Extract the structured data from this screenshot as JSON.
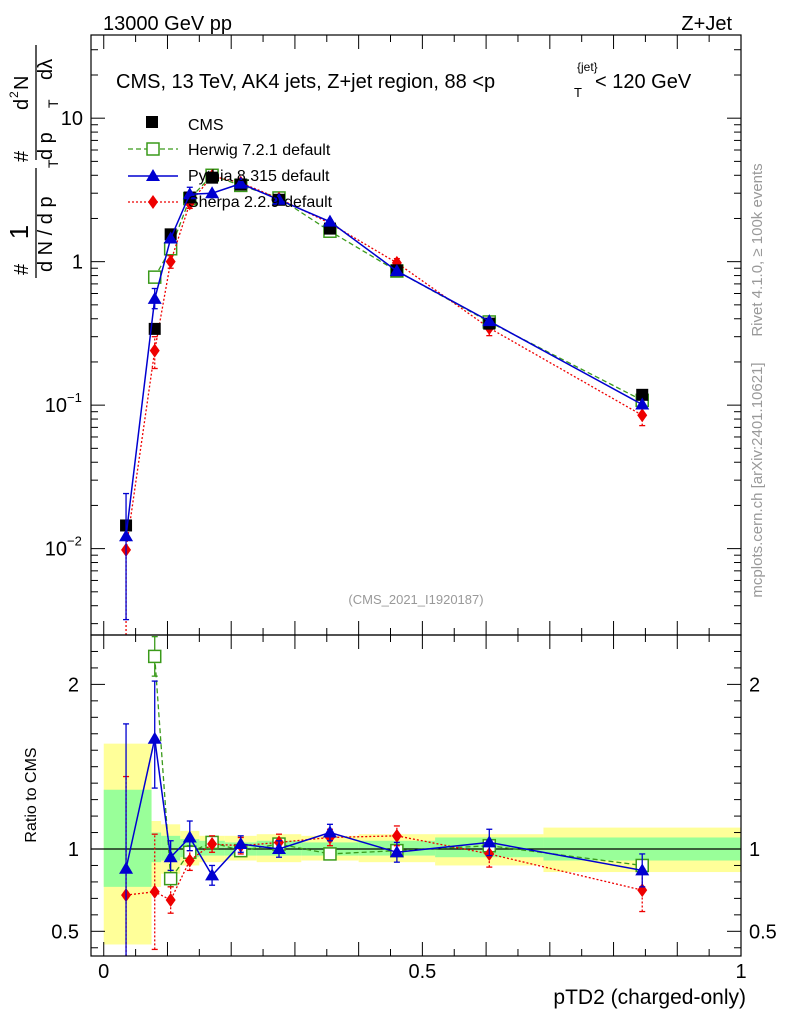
{
  "header": {
    "left": "13000 GeV pp",
    "right": "Z+Jet"
  },
  "side_labels": {
    "rivet": "Rivet 4.1.0, ≥ 100k events",
    "mcplots": "mcplots.cern.ch [arXiv:2401.10621]"
  },
  "colors": {
    "cms": "#000000",
    "herwig": "#3a9a1a",
    "pythia": "#0000d0",
    "sherpa": "#ee0000",
    "band_yellow": "#ffff99",
    "band_green": "#99ff99"
  },
  "chart_data": [
    {
      "type": "scatter",
      "title": "CMS, 13 TeV, AK4 jets, Z+jet region, 88 <p",
      "title_sup": "{jet}",
      "title_sub": "T",
      "title_tail": "< 120 GeV",
      "analysis_tag": "(CMS_2021_I1920187)",
      "ylabel": {
        "one": "1",
        "den": "d N / d p",
        "den_sub": "T",
        "hash": "#",
        "num": "d",
        "num_sup": "2",
        "num_n": "N",
        "frac_den": "d p",
        "frac_den_sub": "T",
        "frac_tail": "dλ"
      },
      "yscale": "log",
      "ylim": [
        0.0025,
        38
      ],
      "xlim": [
        -0.02,
        1.0
      ],
      "yticks": [
        {
          "value": 0.01,
          "base": "10",
          "exp": "−2"
        },
        {
          "value": 0.1,
          "base": "10",
          "exp": "−1"
        },
        {
          "value": 1,
          "label": "1"
        },
        {
          "value": 10,
          "label": "10"
        }
      ],
      "legend": [
        {
          "name": "CMS",
          "key": "cms"
        },
        {
          "name": "Herwig 7.2.1 default",
          "key": "herwig"
        },
        {
          "name": "Pythia 8.315 default",
          "key": "pythia"
        },
        {
          "name": "Sherpa 2.2.9 default",
          "key": "sherpa"
        }
      ],
      "series": [
        {
          "name": "CMS",
          "key": "cms",
          "x": [
            0.035,
            0.08,
            0.105,
            0.135,
            0.17,
            0.215,
            0.275,
            0.355,
            0.46,
            0.605,
            0.845
          ],
          "y": [
            0.0145,
            0.34,
            1.55,
            2.8,
            3.85,
            3.45,
            2.7,
            1.7,
            0.87,
            0.37,
            0.118
          ]
        },
        {
          "name": "Herwig 7.2.1 default",
          "key": "herwig",
          "x": [
            0.035,
            0.08,
            0.105,
            0.135,
            0.17,
            0.215,
            0.275,
            0.355,
            0.46,
            0.605,
            0.845
          ],
          "y": [
            null,
            0.78,
            1.23,
            2.75,
            4.0,
            3.4,
            2.78,
            1.63,
            0.86,
            0.38,
            0.108
          ]
        },
        {
          "name": "Pythia 8.315 default",
          "key": "pythia",
          "x": [
            0.035,
            0.08,
            0.105,
            0.135,
            0.17,
            0.215,
            0.275,
            0.355,
            0.46,
            0.605,
            0.845
          ],
          "y": [
            0.0122,
            0.55,
            1.45,
            2.95,
            3.0,
            3.5,
            2.7,
            1.9,
            0.86,
            0.385,
            0.101
          ],
          "yerr_lo": [
            0.009,
            0.08,
            0.0,
            0.0,
            0.0,
            0.0,
            0.0,
            0.0,
            0.0,
            0.0,
            0.0
          ],
          "yerr_hi": [
            0.012,
            0.1,
            0.0,
            0.35,
            0.0,
            0.0,
            0.0,
            0.0,
            0.0,
            0.0,
            0.0
          ]
        },
        {
          "name": "Sherpa 2.2.9 default",
          "key": "sherpa",
          "x": [
            0.035,
            0.08,
            0.105,
            0.135,
            0.17,
            0.215,
            0.275,
            0.355,
            0.46,
            0.605,
            0.845
          ],
          "y": [
            0.0098,
            0.24,
            1.0,
            2.55,
            3.95,
            3.55,
            2.75,
            1.85,
            0.98,
            0.345,
            0.085
          ],
          "yerr_lo": [
            0.0098,
            0.06,
            0.1,
            0.2,
            0.2,
            0.15,
            0.15,
            0.1,
            0.07,
            0.04,
            0.013
          ],
          "yerr_hi": [
            0.0,
            0.06,
            0.1,
            0.2,
            0.2,
            0.15,
            0.15,
            0.1,
            0.07,
            0.04,
            0.013
          ]
        }
      ]
    },
    {
      "type": "ratio",
      "ylabel": "Ratio to CMS",
      "xlabel": "pTD2 (charged-only)",
      "ylim": [
        0.35,
        2.3
      ],
      "xlim": [
        -0.02,
        1.0
      ],
      "yticks": [
        {
          "value": 0.5,
          "label": "0.5"
        },
        {
          "value": 1,
          "label": "1"
        },
        {
          "value": 2,
          "label": "2"
        }
      ],
      "xticks": [
        {
          "value": 0,
          "label": "0"
        },
        {
          "value": 0.5,
          "label": "0.5"
        },
        {
          "value": 1,
          "label": "1"
        }
      ],
      "bands": [
        {
          "x0": 0.0,
          "x1": 0.075,
          "yellow": [
            0.42,
            1.64
          ],
          "green": [
            0.77,
            1.36
          ]
        },
        {
          "x0": 0.075,
          "x1": 0.09,
          "yellow": [
            0.77,
            1.17
          ],
          "green": [
            0.92,
            1.1
          ]
        },
        {
          "x0": 0.09,
          "x1": 0.12,
          "yellow": [
            0.85,
            1.15
          ],
          "green": [
            0.93,
            1.08
          ]
        },
        {
          "x0": 0.12,
          "x1": 0.15,
          "yellow": [
            0.9,
            1.11
          ],
          "green": [
            0.95,
            1.06
          ]
        },
        {
          "x0": 0.15,
          "x1": 0.19,
          "yellow": [
            0.92,
            1.08
          ],
          "green": [
            0.96,
            1.05
          ]
        },
        {
          "x0": 0.19,
          "x1": 0.24,
          "yellow": [
            0.93,
            1.08
          ],
          "green": [
            0.96,
            1.04
          ]
        },
        {
          "x0": 0.24,
          "x1": 0.31,
          "yellow": [
            0.92,
            1.09
          ],
          "green": [
            0.96,
            1.05
          ]
        },
        {
          "x0": 0.31,
          "x1": 0.4,
          "yellow": [
            0.93,
            1.08
          ],
          "green": [
            0.96,
            1.04
          ]
        },
        {
          "x0": 0.4,
          "x1": 0.52,
          "yellow": [
            0.92,
            1.09
          ],
          "green": [
            0.96,
            1.05
          ]
        },
        {
          "x0": 0.52,
          "x1": 0.69,
          "yellow": [
            0.9,
            1.09
          ],
          "green": [
            0.95,
            1.07
          ]
        },
        {
          "x0": 0.69,
          "x1": 1.0,
          "yellow": [
            0.86,
            1.13
          ],
          "green": [
            0.93,
            1.07
          ]
        }
      ],
      "series": [
        {
          "key": "herwig",
          "x": [
            0.08,
            0.105,
            0.135,
            0.17,
            0.215,
            0.275,
            0.355,
            0.46,
            0.605,
            0.845
          ],
          "y": [
            2.17,
            0.82,
            0.98,
            1.04,
            0.99,
            1.03,
            0.97,
            0.99,
            1.02,
            0.9
          ],
          "yerr": [
            0.12,
            0.05,
            0.04,
            0.03,
            0.03,
            0.03,
            0.03,
            0.03,
            0.03,
            0.03
          ]
        },
        {
          "key": "pythia",
          "x": [
            0.035,
            0.08,
            0.105,
            0.135,
            0.17,
            0.215,
            0.275,
            0.355,
            0.46,
            0.605,
            0.845
          ],
          "y": [
            0.88,
            1.67,
            0.95,
            1.07,
            0.84,
            1.03,
            1.0,
            1.1,
            0.98,
            1.04,
            0.87
          ],
          "yerr_lo": [
            0.88,
            0.3,
            0.08,
            0.08,
            0.06,
            0.05,
            0.05,
            0.05,
            0.06,
            0.08,
            0.1
          ],
          "yerr_hi": [
            0.88,
            0.35,
            0.1,
            0.1,
            0.06,
            0.05,
            0.05,
            0.05,
            0.06,
            0.08,
            0.1
          ]
        },
        {
          "key": "sherpa",
          "x": [
            0.035,
            0.08,
            0.105,
            0.135,
            0.17,
            0.215,
            0.275,
            0.355,
            0.46,
            0.605,
            0.845
          ],
          "y": [
            0.72,
            0.74,
            0.69,
            0.93,
            1.03,
            1.02,
            1.04,
            1.07,
            1.08,
            0.97,
            0.75
          ],
          "yerr_lo": [
            0.72,
            0.35,
            0.08,
            0.06,
            0.05,
            0.05,
            0.05,
            0.05,
            0.06,
            0.08,
            0.13
          ],
          "yerr_hi": [
            0.72,
            0.35,
            0.08,
            0.06,
            0.05,
            0.05,
            0.05,
            0.05,
            0.06,
            0.08,
            0.13
          ]
        }
      ]
    }
  ]
}
